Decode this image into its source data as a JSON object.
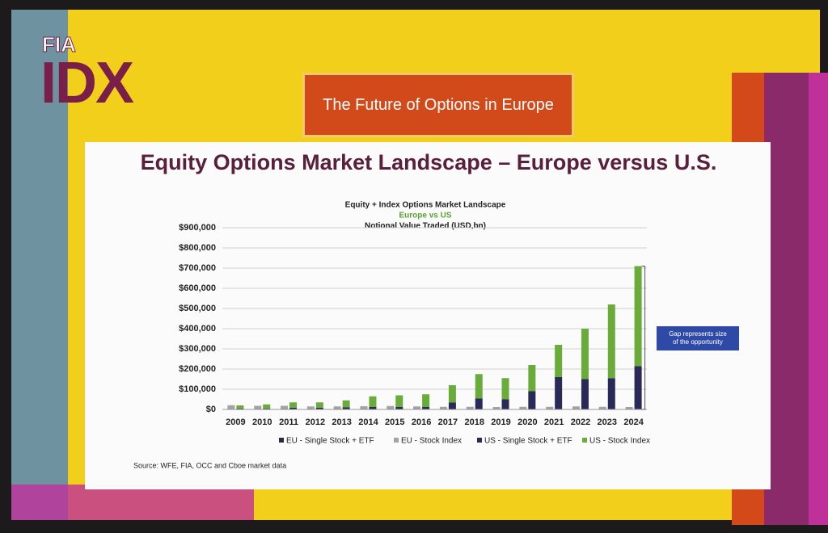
{
  "header": {
    "logo_small": "FIA",
    "logo_big": "IDX",
    "banner": "The Future of Options in Europe"
  },
  "slide_title": "Equity Options Market Landscape – Europe versus U.S.",
  "chart_data": {
    "type": "bar",
    "title": "Equity + Index Options Market Landscape",
    "subtitle": "Europe vs US",
    "y_label": "Notional Value Traded (USD,bn)",
    "categories": [
      "2009",
      "2010",
      "2011",
      "2012",
      "2013",
      "2014",
      "2015",
      "2016",
      "2017",
      "2018",
      "2019",
      "2020",
      "2021",
      "2022",
      "2023",
      "2024"
    ],
    "series": [
      {
        "name": "EU - Single Stock + ETF",
        "color": "#2b2b3b",
        "values": [
          3000,
          3000,
          3000,
          3000,
          3000,
          3000,
          3000,
          3000,
          3000,
          3000,
          3000,
          3000,
          3000,
          3000,
          3000,
          3000
        ]
      },
      {
        "name": "EU - Stock Index",
        "color": "#a3a3a3",
        "values": [
          18000,
          15000,
          15000,
          12000,
          12000,
          13000,
          14000,
          12000,
          10000,
          10000,
          9000,
          10000,
          10000,
          12000,
          10000,
          9000
        ]
      },
      {
        "name": "US - Single Stock + ETF",
        "color": "#2a2a58",
        "values": [
          5000,
          5000,
          8000,
          8000,
          10000,
          12000,
          12000,
          12000,
          35000,
          55000,
          50000,
          90000,
          160000,
          150000,
          155000,
          215000
        ]
      },
      {
        "name": "US - Stock Index",
        "color": "#6aac3a",
        "values": [
          15000,
          20000,
          27000,
          27000,
          35000,
          53000,
          58000,
          63000,
          85000,
          120000,
          105000,
          130000,
          160000,
          250000,
          365000,
          495000
        ]
      }
    ],
    "ylim": [
      0,
      900000
    ],
    "yticks": [
      {
        "value": 0,
        "label": "$0"
      },
      {
        "value": 100000,
        "label": "$100,000"
      },
      {
        "value": 200000,
        "label": "$200,000"
      },
      {
        "value": 300000,
        "label": "$300,000"
      },
      {
        "value": 400000,
        "label": "$400,000"
      },
      {
        "value": 500000,
        "label": "$500,000"
      },
      {
        "value": 600000,
        "label": "$600,000"
      },
      {
        "value": 700000,
        "label": "$700,000"
      },
      {
        "value": 800000,
        "label": "$800,000"
      },
      {
        "value": 900000,
        "label": "$900,000"
      }
    ],
    "grid": true,
    "annotation": "Gap represents size of the opportunity",
    "source": "Source: WFE, FIA, OCC and Cboe market data"
  }
}
